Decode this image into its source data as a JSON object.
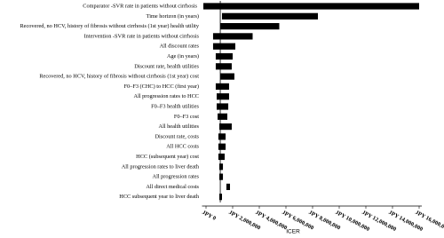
{
  "chart_data": {
    "type": "tornado",
    "xlabel": "ICER",
    "categories": [
      "Comparator -SVR rate in patients without cirrhosis",
      "Time horizon (in years)",
      "Recovered, no HCV, history of fibrosis without cirrhosis (1st year) health utility",
      "Intervention -SVR rate in patients without cirrhosis",
      "All discount rates",
      "Age (in years)",
      "Discount rate, health utilities",
      "Recovered, no HCV, history of fibrosis without cirrhosis (1st year) cost",
      "F0–F3 (CHC) to HCC (first year)",
      "All progression rates to HCC",
      "F0–F3 health utilities",
      "F0–F3 cost",
      "All health utilities",
      "Discount rate, costs",
      "All HCC costs",
      "HCC (subsequent year) cost",
      "All progression rates to liver death",
      "All progression rates",
      "All direct medical costs",
      "HCC subsequent year to liver death"
    ],
    "low": [
      -200000,
      1200000,
      1070000,
      530000,
      530000,
      730000,
      730000,
      1070000,
      730000,
      800000,
      800000,
      870000,
      1000000,
      930000,
      930000,
      930000,
      1000000,
      1000000,
      1530000,
      1000000
    ],
    "high": [
      16000000,
      8400000,
      5500000,
      3500000,
      2200000,
      2000000,
      1930000,
      2130000,
      1730000,
      1730000,
      1670000,
      1600000,
      1930000,
      1470000,
      1470000,
      1400000,
      1270000,
      1270000,
      1800000,
      1200000
    ],
    "base_value": 1070000,
    "color": "#000000",
    "xlim": [
      -300000,
      16200000
    ],
    "xticks": [
      {
        "value": 0,
        "label": "JPY 0"
      },
      {
        "value": 2000000,
        "label": "JPY 2,000,000"
      },
      {
        "value": 4000000,
        "label": "JPY 4,000,000"
      },
      {
        "value": 6000000,
        "label": "JPY 6,000,000"
      },
      {
        "value": 8000000,
        "label": "JPY 8,000,000"
      },
      {
        "value": 10000000,
        "label": "JPY 10,000,000"
      },
      {
        "value": 12000000,
        "label": "JPY 12,000,000"
      },
      {
        "value": 14000000,
        "label": "JPY 14,000,000"
      },
      {
        "value": 16000000,
        "label": "JPY 16,000,000"
      }
    ]
  }
}
